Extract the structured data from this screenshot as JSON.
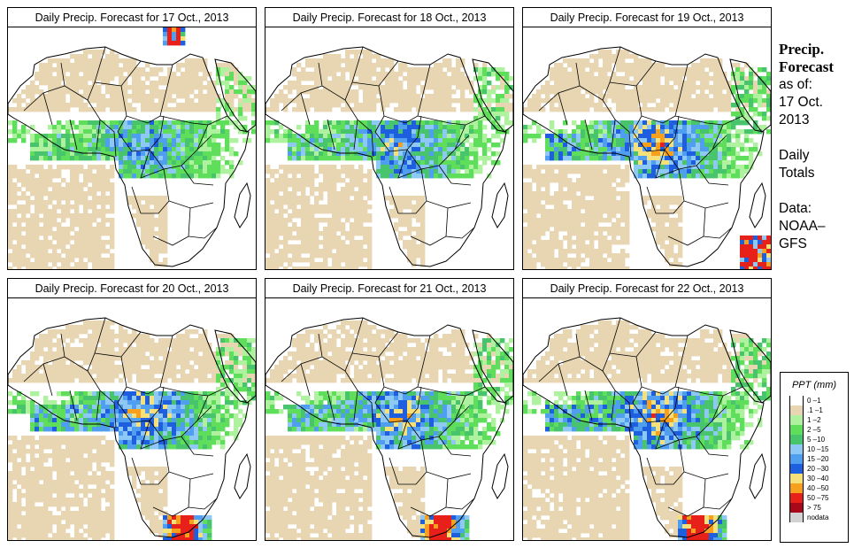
{
  "panels": [
    {
      "title": "Daily Precip. Forecast for  17 Oct., 2013",
      "intensity": 0.85,
      "hotspots": "north-east"
    },
    {
      "title": "Daily Precip. Forecast for  18 Oct., 2013",
      "intensity": 1.0,
      "hotspots": "center"
    },
    {
      "title": "Daily Precip. Forecast for  19 Oct., 2013",
      "intensity": 1.2,
      "hotspots": "south-east"
    },
    {
      "title": "Daily Precip. Forecast for  20 Oct., 2013",
      "intensity": 1.15,
      "hotspots": "south"
    },
    {
      "title": "Daily Precip. Forecast for  21 Oct., 2013",
      "intensity": 1.1,
      "hotspots": "south"
    },
    {
      "title": "Daily Precip. Forecast for  22 Oct., 2013",
      "intensity": 1.2,
      "hotspots": "south"
    }
  ],
  "sidebar": {
    "title_line1": "Precip.",
    "title_line2": "Forecast",
    "asof_label": "as of:",
    "asof_date_line1": "17 Oct.",
    "asof_date_line2": "2013",
    "totals_line1": "Daily",
    "totals_line2": "Totals",
    "data_line1": "Data:",
    "data_line2": "NOAA–",
    "data_line3": "GFS"
  },
  "legend": {
    "title": "PPT (mm)",
    "items": [
      {
        "label": "0 –1",
        "color": "#ffffff"
      },
      {
        "label": ".1 –1",
        "color": "#e8d6b3"
      },
      {
        "label": "1 –2",
        "color": "#aef2a0"
      },
      {
        "label": "2 –5",
        "color": "#5ede5a"
      },
      {
        "label": "5 –10",
        "color": "#48c56c"
      },
      {
        "label": "10 –15",
        "color": "#8ec8f4"
      },
      {
        "label": "15 –20",
        "color": "#4f9ef0"
      },
      {
        "label": "20 –30",
        "color": "#1e5fe0"
      },
      {
        "label": "30 –40",
        "color": "#f6e07a"
      },
      {
        "label": "40 –50",
        "color": "#f7a01e"
      },
      {
        "label": "50 –75",
        "color": "#e8201a"
      },
      {
        "label": "> 75",
        "color": "#a8081a"
      },
      {
        "label": "nodata",
        "color": "#d2d2d2"
      }
    ]
  }
}
